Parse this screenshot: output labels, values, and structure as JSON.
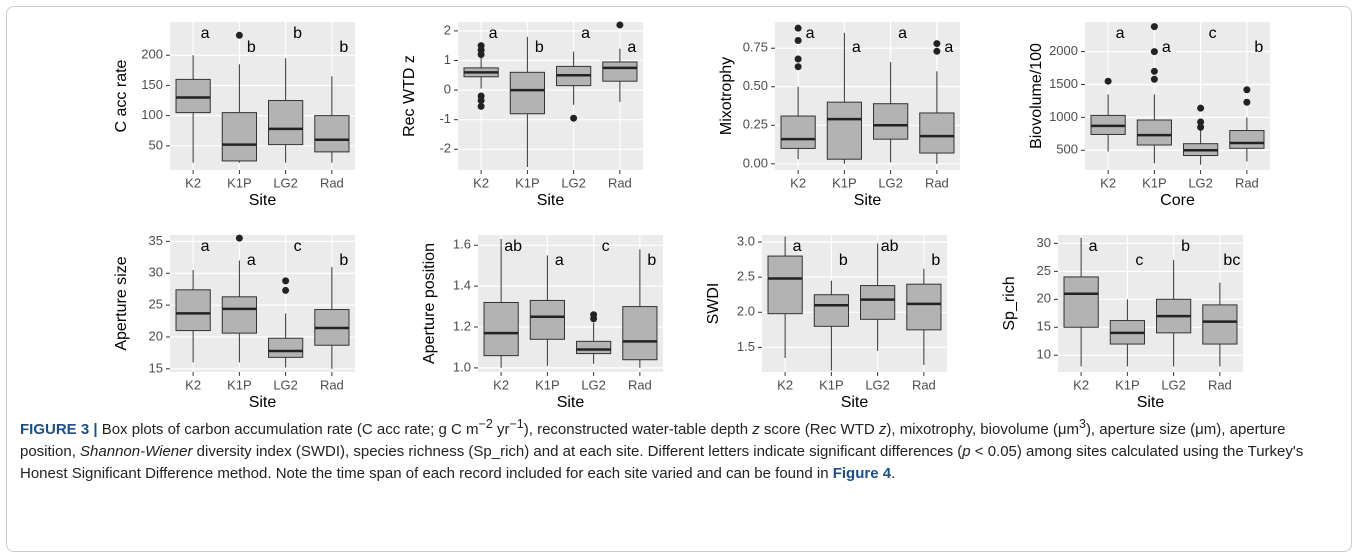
{
  "chart_data": [
    {
      "type": "box",
      "ylabel": "C acc rate",
      "xlabel": "Site",
      "categories": [
        "K2",
        "K1P",
        "LG2",
        "Rad"
      ],
      "ylim": [
        10,
        255
      ],
      "yticks": [
        50,
        100,
        150,
        200
      ],
      "boxes": [
        {
          "whislo": 22,
          "q1": 105,
          "med": 130,
          "q3": 160,
          "whishi": 200
        },
        {
          "whislo": 22,
          "q1": 25,
          "med": 52,
          "q3": 105,
          "whishi": 185,
          "fliers": [
            233
          ]
        },
        {
          "whislo": 22,
          "q1": 52,
          "med": 78,
          "q3": 125,
          "whishi": 195
        },
        {
          "whislo": 22,
          "q1": 40,
          "med": 60,
          "q3": 100,
          "whishi": 165
        }
      ],
      "letters": [
        "a",
        "b",
        "b",
        "b"
      ]
    },
    {
      "type": "box",
      "ylabel": "Rec WTD z",
      "xlabel": "Site",
      "categories": [
        "K2",
        "K1P",
        "LG2",
        "Rad"
      ],
      "ylim": [
        -2.7,
        2.3
      ],
      "yticks": [
        -2,
        -1,
        0,
        1,
        2
      ],
      "boxes": [
        {
          "whislo": 0.05,
          "q1": 0.45,
          "med": 0.6,
          "q3": 0.75,
          "whishi": 1.1,
          "fliers": [
            1.2,
            1.35,
            1.5,
            -0.2,
            -0.35,
            -0.55
          ]
        },
        {
          "whislo": -2.6,
          "q1": -0.8,
          "med": 0,
          "q3": 0.6,
          "whishi": 1.8
        },
        {
          "whislo": -0.5,
          "q1": 0.15,
          "med": 0.5,
          "q3": 0.8,
          "whishi": 1.3,
          "fliers": [
            -0.95
          ]
        },
        {
          "whislo": -0.4,
          "q1": 0.3,
          "med": 0.75,
          "q3": 0.95,
          "whishi": 1.4,
          "fliers": [
            2.2
          ]
        }
      ],
      "letters": [
        "a",
        "b",
        "a",
        "a"
      ]
    },
    {
      "type": "box",
      "ylabel": "Mixotrophy",
      "xlabel": "Site",
      "categories": [
        "K2",
        "K1P",
        "LG2",
        "Rad"
      ],
      "ylim": [
        -0.04,
        0.92
      ],
      "yticks": [
        {
          "value": 0,
          "label": "0.00"
        },
        0.25,
        {
          "value": 0.5,
          "label": "0.50"
        },
        0.75
      ],
      "boxes": [
        {
          "whislo": 0.03,
          "q1": 0.1,
          "med": 0.16,
          "q3": 0.31,
          "whishi": 0.5,
          "fliers": [
            0.63,
            0.68,
            0.8,
            0.88
          ]
        },
        {
          "whislo": 0,
          "q1": 0.03,
          "med": 0.29,
          "q3": 0.4,
          "whishi": 0.85
        },
        {
          "whislo": 0.01,
          "q1": 0.16,
          "med": 0.25,
          "q3": 0.39,
          "whishi": 0.66
        },
        {
          "whislo": 0,
          "q1": 0.07,
          "med": 0.18,
          "q3": 0.33,
          "whishi": 0.6,
          "fliers": [
            0.73,
            0.78
          ]
        }
      ],
      "letters": [
        "a",
        "a",
        "a",
        "a"
      ]
    },
    {
      "type": "box",
      "ylabel": "Biovolume/100",
      "xlabel": "Core",
      "categories": [
        "K2",
        "K1P",
        "LG2",
        "Rad"
      ],
      "ylim": [
        200,
        2450
      ],
      "yticks": [
        500,
        1000,
        1500,
        2000
      ],
      "boxes": [
        {
          "whislo": 480,
          "q1": 740,
          "med": 870,
          "q3": 1030,
          "whishi": 1350,
          "fliers": [
            1550
          ]
        },
        {
          "whislo": 300,
          "q1": 580,
          "med": 730,
          "q3": 960,
          "whishi": 1350,
          "fliers": [
            1580,
            1700,
            2000,
            2380
          ]
        },
        {
          "whislo": 280,
          "q1": 420,
          "med": 500,
          "q3": 600,
          "whishi": 800,
          "fliers": [
            850,
            930,
            1140
          ]
        },
        {
          "whislo": 330,
          "q1": 530,
          "med": 610,
          "q3": 800,
          "whishi": 1000,
          "fliers": [
            1230,
            1420
          ]
        }
      ],
      "letters": [
        "a",
        "a",
        "c",
        "b"
      ]
    },
    {
      "type": "box",
      "ylabel": "Aperture size",
      "xlabel": "Site",
      "categories": [
        "K2",
        "K1P",
        "LG2",
        "Rad"
      ],
      "ylim": [
        14.5,
        36
      ],
      "yticks": [
        15,
        20,
        25,
        30,
        35
      ],
      "boxes": [
        {
          "whislo": 16,
          "q1": 21,
          "med": 23.7,
          "q3": 27.4,
          "whishi": 30.5
        },
        {
          "whislo": 16,
          "q1": 20.6,
          "med": 24.4,
          "q3": 26.3,
          "whishi": 32,
          "fliers": [
            35.5
          ]
        },
        {
          "whislo": 15.2,
          "q1": 16.8,
          "med": 17.8,
          "q3": 19.8,
          "whishi": 23.7,
          "fliers": [
            27.3,
            28.8
          ]
        },
        {
          "whislo": 15,
          "q1": 18.7,
          "med": 21.4,
          "q3": 24.3,
          "whishi": 31
        }
      ],
      "letters": [
        "a",
        "a",
        "c",
        "b"
      ]
    },
    {
      "type": "box",
      "ylabel": "Aperture position",
      "xlabel": "Site",
      "categories": [
        "K2",
        "K1P",
        "LG2",
        "Rad"
      ],
      "ylim": [
        0.98,
        1.65
      ],
      "yticks": [
        {
          "value": 1,
          "label": "1.0"
        },
        1.2,
        1.4,
        1.6
      ],
      "boxes": [
        {
          "whislo": 1,
          "q1": 1.06,
          "med": 1.17,
          "q3": 1.32,
          "whishi": 1.63
        },
        {
          "whislo": 1.01,
          "q1": 1.14,
          "med": 1.25,
          "q3": 1.33,
          "whishi": 1.55
        },
        {
          "whislo": 1.02,
          "q1": 1.07,
          "med": 1.09,
          "q3": 1.13,
          "whishi": 1.22,
          "fliers": [
            1.24,
            1.26
          ]
        },
        {
          "whislo": 1,
          "q1": 1.04,
          "med": 1.13,
          "q3": 1.3,
          "whishi": 1.58
        }
      ],
      "letters": [
        "ab",
        "a",
        "c",
        "b"
      ]
    },
    {
      "type": "box",
      "ylabel": "SWDI",
      "xlabel": "Site",
      "categories": [
        "K2",
        "K1P",
        "LG2",
        "Rad"
      ],
      "ylim": [
        1.15,
        3.1
      ],
      "yticks": [
        1.5,
        {
          "value": 2,
          "label": "2.0"
        },
        2.5,
        {
          "value": 3,
          "label": "3.0"
        }
      ],
      "boxes": [
        {
          "whislo": 1.35,
          "q1": 1.98,
          "med": 2.48,
          "q3": 2.8,
          "whishi": 3.08
        },
        {
          "whislo": 1.17,
          "q1": 1.8,
          "med": 2.1,
          "q3": 2.25,
          "whishi": 2.45
        },
        {
          "whislo": 1.45,
          "q1": 1.9,
          "med": 2.18,
          "q3": 2.38,
          "whishi": 2.98
        },
        {
          "whislo": 1.25,
          "q1": 1.75,
          "med": 2.12,
          "q3": 2.4,
          "whishi": 2.62
        }
      ],
      "letters": [
        "a",
        "b",
        "ab",
        "b"
      ]
    },
    {
      "type": "box",
      "ylabel": "Sp_rich",
      "xlabel": "Site",
      "categories": [
        "K2",
        "K1P",
        "LG2",
        "Rad"
      ],
      "ylim": [
        7,
        31.5
      ],
      "yticks": [
        10,
        15,
        20,
        25,
        30
      ],
      "boxes": [
        {
          "whislo": 8,
          "q1": 15,
          "med": 21,
          "q3": 24,
          "whishi": 31
        },
        {
          "whislo": 8,
          "q1": 12,
          "med": 14,
          "q3": 16.2,
          "whishi": 20
        },
        {
          "whislo": 8,
          "q1": 14,
          "med": 17,
          "q3": 20,
          "whishi": 27
        },
        {
          "whislo": 8,
          "q1": 12,
          "med": 16,
          "q3": 19,
          "whishi": 23
        }
      ],
      "letters": [
        "a",
        "c",
        "b",
        "bc"
      ]
    }
  ],
  "caption": [
    "FIGURE 3 |",
    " Box plots of carbon accumulation rate (C acc rate; g C m",
    "−2",
    " yr",
    "−1",
    "), reconstructed water-table depth ",
    "z",
    " score (Rec WTD ",
    "z",
    "), mixotrophy, biovolume (μm",
    "3",
    "), aperture size (μm), aperture position, ",
    "Shannon-Wiener",
    " diversity index (SWDI), species richness (Sp_rich) and at each site. Different letters indicate significant differences (",
    "p",
    " < 0.05) among sites calculated using the Turkey's Honest Significant Difference method. Note the time span of each record included for each site varied and can be found in ",
    "Figure 4",
    "."
  ]
}
